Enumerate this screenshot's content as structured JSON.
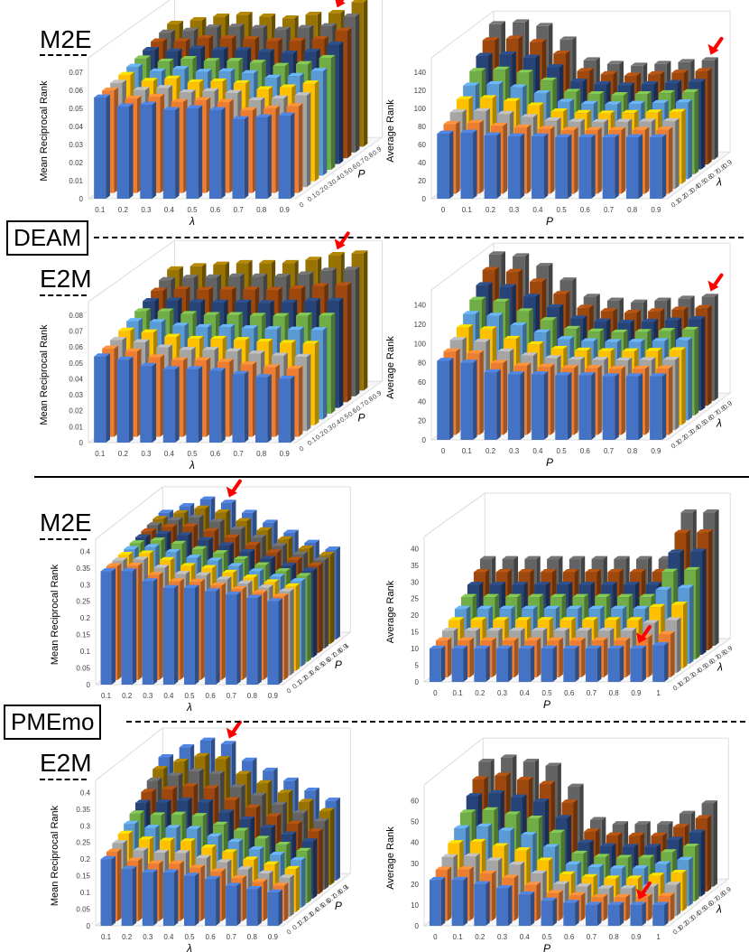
{
  "figure": {
    "datasets": [
      "DEAM",
      "PMEmo"
    ],
    "directions": [
      "M2E",
      "E2M"
    ]
  },
  "palette": [
    "#4472C4",
    "#ED7D31",
    "#A5A5A5",
    "#FFC000",
    "#5B9BD5",
    "#70AD47",
    "#264478",
    "#9E480E",
    "#636363",
    "#997300"
  ],
  "chart_data": [
    {
      "id": "deam-m2e-mrr",
      "dataset": "DEAM",
      "direction": "M2E",
      "type": "bar3d",
      "ylabel": "Mean Reciprocal Rank",
      "xlabel": "λ",
      "zlabel": "P",
      "x": [
        "0.1",
        "0.2",
        "0.3",
        "0.4",
        "0.5",
        "0.6",
        "0.7",
        "0.8",
        "0.9"
      ],
      "z": [
        "0",
        "0.1",
        "0.2",
        "0.3",
        "0.4",
        "0.5",
        "0.6",
        "0.7",
        "0.8",
        "0.9"
      ],
      "yticks": [
        "0",
        "0.01",
        "0.02",
        "0.03",
        "0.04",
        "0.05",
        "0.06",
        "0.07"
      ],
      "ylim": [
        0,
        0.075
      ],
      "front": [
        0.056,
        0.051,
        0.052,
        0.049,
        0.05,
        0.049,
        0.044,
        0.045,
        0.046
      ],
      "back": [
        0.068,
        0.07,
        0.072,
        0.073,
        0.072,
        0.071,
        0.073,
        0.074,
        0.08
      ],
      "best": {
        "x": "0.8",
        "z": "0.9"
      }
    },
    {
      "id": "deam-m2e-ar",
      "dataset": "DEAM",
      "direction": "M2E",
      "type": "bar3d",
      "ylabel": "Average Rank",
      "xlabel": "P",
      "zlabel": "λ",
      "x": [
        "0",
        "0.1",
        "0.2",
        "0.3",
        "0.4",
        "0.5",
        "0.6",
        "0.7",
        "0.8",
        "0.9"
      ],
      "z": [
        "0.1",
        "0.2",
        "0.3",
        "0.4",
        "0.5",
        "0.6",
        "0.7",
        "0.8",
        "0.9"
      ],
      "yticks": [
        "0",
        "20",
        "40",
        "60",
        "80",
        "100",
        "120",
        "140"
      ],
      "ylim": [
        0,
        150
      ],
      "front": [
        72,
        73,
        70,
        69,
        69,
        68,
        68,
        68,
        68,
        68
      ],
      "back": [
        150,
        152,
        148,
        133,
        110,
        106,
        104,
        106,
        108,
        110
      ],
      "best": {
        "x": "0.9",
        "z": "0.9"
      }
    },
    {
      "id": "deam-e2m-mrr",
      "dataset": "DEAM",
      "direction": "E2M",
      "type": "bar3d",
      "ylabel": "Mean Reciprocal Rank",
      "xlabel": "λ",
      "zlabel": "P",
      "x": [
        "0.1",
        "0.2",
        "0.3",
        "0.4",
        "0.5",
        "0.6",
        "0.7",
        "0.8",
        "0.9"
      ],
      "z": [
        "0",
        "0.1",
        "0.2",
        "0.3",
        "0.4",
        "0.5",
        "0.6",
        "0.7",
        "0.8",
        "0.9"
      ],
      "yticks": [
        "0",
        "0.01",
        "0.02",
        "0.03",
        "0.04",
        "0.05",
        "0.06",
        "0.07",
        "0.08"
      ],
      "ylim": [
        0,
        0.085
      ],
      "front": [
        0.054,
        0.052,
        0.048,
        0.046,
        0.046,
        0.045,
        0.043,
        0.041,
        0.04
      ],
      "back": [
        0.076,
        0.078,
        0.079,
        0.08,
        0.08,
        0.08,
        0.082,
        0.085,
        0.086
      ],
      "best": {
        "x": "0.8",
        "z": "0.9"
      }
    },
    {
      "id": "deam-e2m-ar",
      "dataset": "DEAM",
      "direction": "E2M",
      "type": "bar3d",
      "ylabel": "Average Rank",
      "xlabel": "P",
      "zlabel": "λ",
      "x": [
        "0",
        "0.1",
        "0.2",
        "0.3",
        "0.4",
        "0.5",
        "0.6",
        "0.7",
        "0.8",
        "0.9"
      ],
      "z": [
        "0.1",
        "0.2",
        "0.3",
        "0.4",
        "0.5",
        "0.6",
        "0.7",
        "0.8",
        "0.9"
      ],
      "yticks": [
        "0",
        "20",
        "40",
        "60",
        "80",
        "100",
        "120",
        "140"
      ],
      "ylim": [
        0,
        150
      ],
      "front": [
        82,
        80,
        70,
        68,
        68,
        67,
        67,
        66,
        66,
        66
      ],
      "back": [
        152,
        150,
        140,
        125,
        108,
        104,
        102,
        104,
        106,
        108
      ],
      "best": {
        "x": "0.9",
        "z": "0.9"
      }
    },
    {
      "id": "pmemo-m2e-mrr",
      "dataset": "PMEmo",
      "direction": "M2E",
      "type": "bar3d",
      "ylabel": "Mean Reciprocal Rank",
      "xlabel": "λ",
      "zlabel": "P",
      "x": [
        "0.1",
        "0.2",
        "0.3",
        "0.4",
        "0.5",
        "0.6",
        "0.7",
        "0.8",
        "0.9"
      ],
      "z": [
        "0",
        "0.1",
        "0.2",
        "0.3",
        "0.4",
        "0.5",
        "0.6",
        "0.7",
        "0.8",
        "0.9",
        "1"
      ],
      "yticks": [
        "0",
        "0.05",
        "0.1",
        "0.15",
        "0.2",
        "0.25",
        "0.3",
        "0.35",
        "0.4"
      ],
      "ylim": [
        0,
        0.42
      ],
      "front": [
        0.34,
        0.34,
        0.31,
        0.29,
        0.29,
        0.28,
        0.27,
        0.26,
        0.25
      ],
      "back": [
        0.38,
        0.4,
        0.42,
        0.41,
        0.38,
        0.35,
        0.32,
        0.29,
        0.27
      ],
      "best": {
        "x": "0.4",
        "z": "1"
      }
    },
    {
      "id": "pmemo-m2e-ar",
      "dataset": "PMEmo",
      "direction": "M2E",
      "type": "bar3d",
      "ylabel": "Average Rank",
      "xlabel": "P",
      "zlabel": "λ",
      "x": [
        "0",
        "0.1",
        "0.2",
        "0.3",
        "0.4",
        "0.5",
        "0.6",
        "0.7",
        "0.8",
        "0.9",
        "1"
      ],
      "z": [
        "0.1",
        "0.2",
        "0.3",
        "0.4",
        "0.5",
        "0.6",
        "0.7",
        "0.8",
        "0.9"
      ],
      "yticks": [
        "0",
        "5",
        "10",
        "15",
        "20",
        "25",
        "30",
        "35",
        "40"
      ],
      "ylim": [
        0,
        42
      ],
      "front": [
        10,
        10,
        10,
        10,
        10,
        10,
        10,
        10,
        10,
        10,
        11
      ],
      "back": [
        26,
        26,
        26,
        26,
        26,
        26,
        26,
        26,
        26,
        40,
        40
      ],
      "best": {
        "x": "0.9",
        "z": "0.1"
      }
    },
    {
      "id": "pmemo-e2m-mrr",
      "dataset": "PMEmo",
      "direction": "E2M",
      "type": "bar3d",
      "ylabel": "Mean Reciprocal Rank",
      "xlabel": "λ",
      "zlabel": "P",
      "x": [
        "0.1",
        "0.2",
        "0.3",
        "0.4",
        "0.5",
        "0.6",
        "0.7",
        "0.8",
        "0.9"
      ],
      "z": [
        "0",
        "0.1",
        "0.2",
        "0.3",
        "0.4",
        "0.5",
        "0.6",
        "0.7",
        "0.8",
        "0.9",
        "1"
      ],
      "yticks": [
        "0",
        "0.05",
        "0.1",
        "0.15",
        "0.2",
        "0.25",
        "0.3",
        "0.35",
        "0.4"
      ],
      "ylim": [
        0,
        0.42
      ],
      "front": [
        0.2,
        0.17,
        0.16,
        0.16,
        0.15,
        0.14,
        0.12,
        0.11,
        0.1
      ],
      "back": [
        0.37,
        0.4,
        0.42,
        0.41,
        0.36,
        0.33,
        0.3,
        0.27,
        0.24
      ],
      "best": {
        "x": "0.4",
        "z": "1"
      }
    },
    {
      "id": "pmemo-e2m-ar",
      "dataset": "PMEmo",
      "direction": "E2M",
      "type": "bar3d",
      "ylabel": "Average Rank",
      "xlabel": "P",
      "zlabel": "λ",
      "x": [
        "0",
        "0.1",
        "0.2",
        "0.3",
        "0.4",
        "0.5",
        "0.6",
        "0.7",
        "0.8",
        "0.9",
        "1"
      ],
      "z": [
        "0.1",
        "0.2",
        "0.3",
        "0.4",
        "0.5",
        "0.6",
        "0.7",
        "0.8",
        "0.9"
      ],
      "yticks": [
        "0",
        "10",
        "20",
        "30",
        "40",
        "50",
        "60"
      ],
      "ylim": [
        0,
        65
      ],
      "front": [
        22,
        22,
        20,
        18,
        15,
        12,
        11,
        10,
        10,
        10,
        10
      ],
      "back": [
        60,
        62,
        60,
        58,
        48,
        32,
        30,
        30,
        30,
        35,
        40
      ],
      "best": {
        "x": "0.9",
        "z": "0.1"
      }
    }
  ]
}
